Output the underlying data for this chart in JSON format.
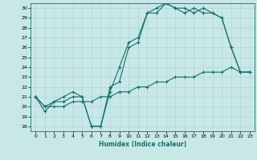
{
  "xlabel": "Humidex (Indice chaleur)",
  "bg_color": "#c8e8e8",
  "grid_color": "#afd4d4",
  "line_color": "#1a6e6e",
  "xlim": [
    -0.5,
    23.5
  ],
  "ylim": [
    17.5,
    30.5
  ],
  "xticks": [
    0,
    1,
    2,
    3,
    4,
    5,
    6,
    7,
    8,
    9,
    10,
    11,
    12,
    13,
    14,
    15,
    16,
    17,
    18,
    19,
    20,
    21,
    22,
    23
  ],
  "yticks": [
    18,
    19,
    20,
    21,
    22,
    23,
    24,
    25,
    26,
    27,
    28,
    29,
    30
  ],
  "line1": [
    21,
    19.5,
    20.5,
    20.5,
    21,
    21,
    18,
    18,
    22,
    22.5,
    26,
    26.5,
    29.5,
    29.5,
    30.5,
    30,
    30,
    29.5,
    30,
    29.5,
    29,
    26,
    23.5,
    23.5
  ],
  "line2": [
    21,
    20,
    20.5,
    21,
    21.5,
    21,
    18,
    18,
    21.5,
    24,
    26.5,
    27,
    29.5,
    30,
    30.5,
    30,
    29.5,
    30,
    29.5,
    29.5,
    29,
    26,
    23.5,
    23.5
  ],
  "line3": [
    21,
    20,
    20,
    20,
    20.5,
    20.5,
    20.5,
    21,
    21,
    21.5,
    21.5,
    22,
    22,
    22.5,
    22.5,
    23,
    23,
    23,
    23.5,
    23.5,
    23.5,
    24,
    23.5,
    23.5
  ]
}
